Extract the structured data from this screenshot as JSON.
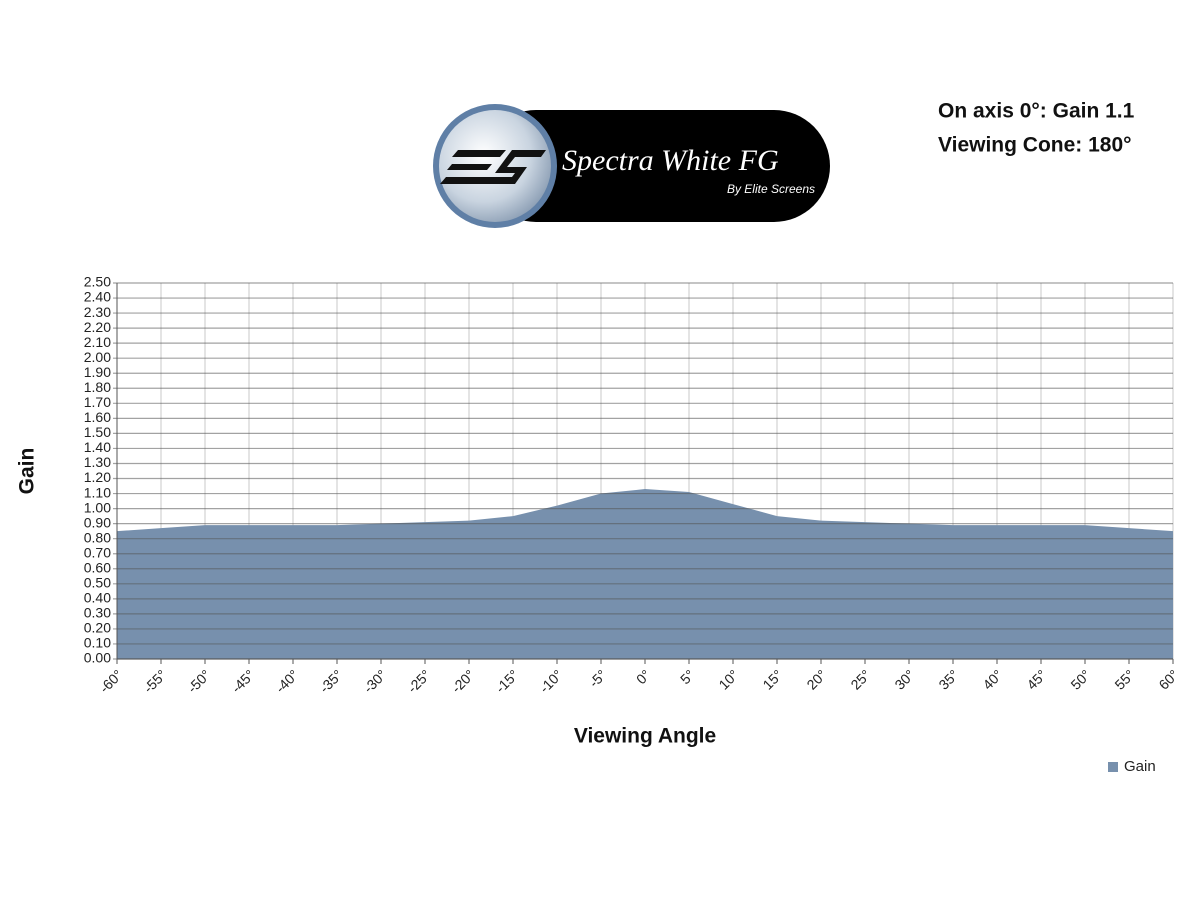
{
  "chart_data": {
    "type": "area",
    "logo_title": "Spectra White FG",
    "logo_subtitle": "By Elite Screens",
    "annotations": [
      "On axis 0°: Gain 1.1",
      "Viewing Cone: 180°"
    ],
    "x_label": "Viewing Angle",
    "y_label": "Gain",
    "categories": [
      "-60°",
      "-55°",
      "-50°",
      "-45°",
      "-40°",
      "-35°",
      "-30°",
      "-25°",
      "-20°",
      "-15°",
      "-10°",
      "-5°",
      "0°",
      "5°",
      "10°",
      "15°",
      "20°",
      "25°",
      "30°",
      "35°",
      "40°",
      "45°",
      "50°",
      "55°",
      "60°"
    ],
    "series": [
      {
        "name": "Gain",
        "color": "#7790ad",
        "values": [
          0.85,
          0.87,
          0.89,
          0.89,
          0.89,
          0.89,
          0.9,
          0.91,
          0.92,
          0.95,
          1.02,
          1.1,
          1.13,
          1.11,
          1.03,
          0.95,
          0.92,
          0.91,
          0.9,
          0.89,
          0.89,
          0.89,
          0.89,
          0.87,
          0.85
        ]
      }
    ],
    "ylim": [
      0,
      2.5
    ],
    "yticks": [
      {
        "value": 0,
        "label": "0.00"
      },
      {
        "value": 0.1,
        "label": "0.10"
      },
      {
        "value": 0.2,
        "label": "0.20"
      },
      {
        "value": 0.3,
        "label": "0.30"
      },
      {
        "value": 0.4,
        "label": "0.40"
      },
      {
        "value": 0.5,
        "label": "0.50"
      },
      {
        "value": 0.6,
        "label": "0.60"
      },
      {
        "value": 0.7,
        "label": "0.70"
      },
      {
        "value": 0.8,
        "label": "0.80"
      },
      {
        "value": 0.9,
        "label": "0.90"
      },
      {
        "value": 1,
        "label": "1.00"
      },
      {
        "value": 1.1,
        "label": "1.10"
      },
      {
        "value": 1.2,
        "label": "1.20"
      },
      {
        "value": 1.3,
        "label": "1.30"
      },
      {
        "value": 1.4,
        "label": "1.40"
      },
      {
        "value": 1.5,
        "label": "1.50"
      },
      {
        "value": 1.6,
        "label": "1.60"
      },
      {
        "value": 1.7,
        "label": "1.70"
      },
      {
        "value": 1.8,
        "label": "1.80"
      },
      {
        "value": 1.9,
        "label": "1.90"
      },
      {
        "value": 2,
        "label": "2.00"
      },
      {
        "value": 2.1,
        "label": "2.10"
      },
      {
        "value": 2.2,
        "label": "2.20"
      },
      {
        "value": 2.3,
        "label": "2.30"
      },
      {
        "value": 2.4,
        "label": "2.40"
      },
      {
        "value": 2.5,
        "label": "2.50"
      }
    ],
    "grid": true,
    "legend": "bottom-right"
  }
}
